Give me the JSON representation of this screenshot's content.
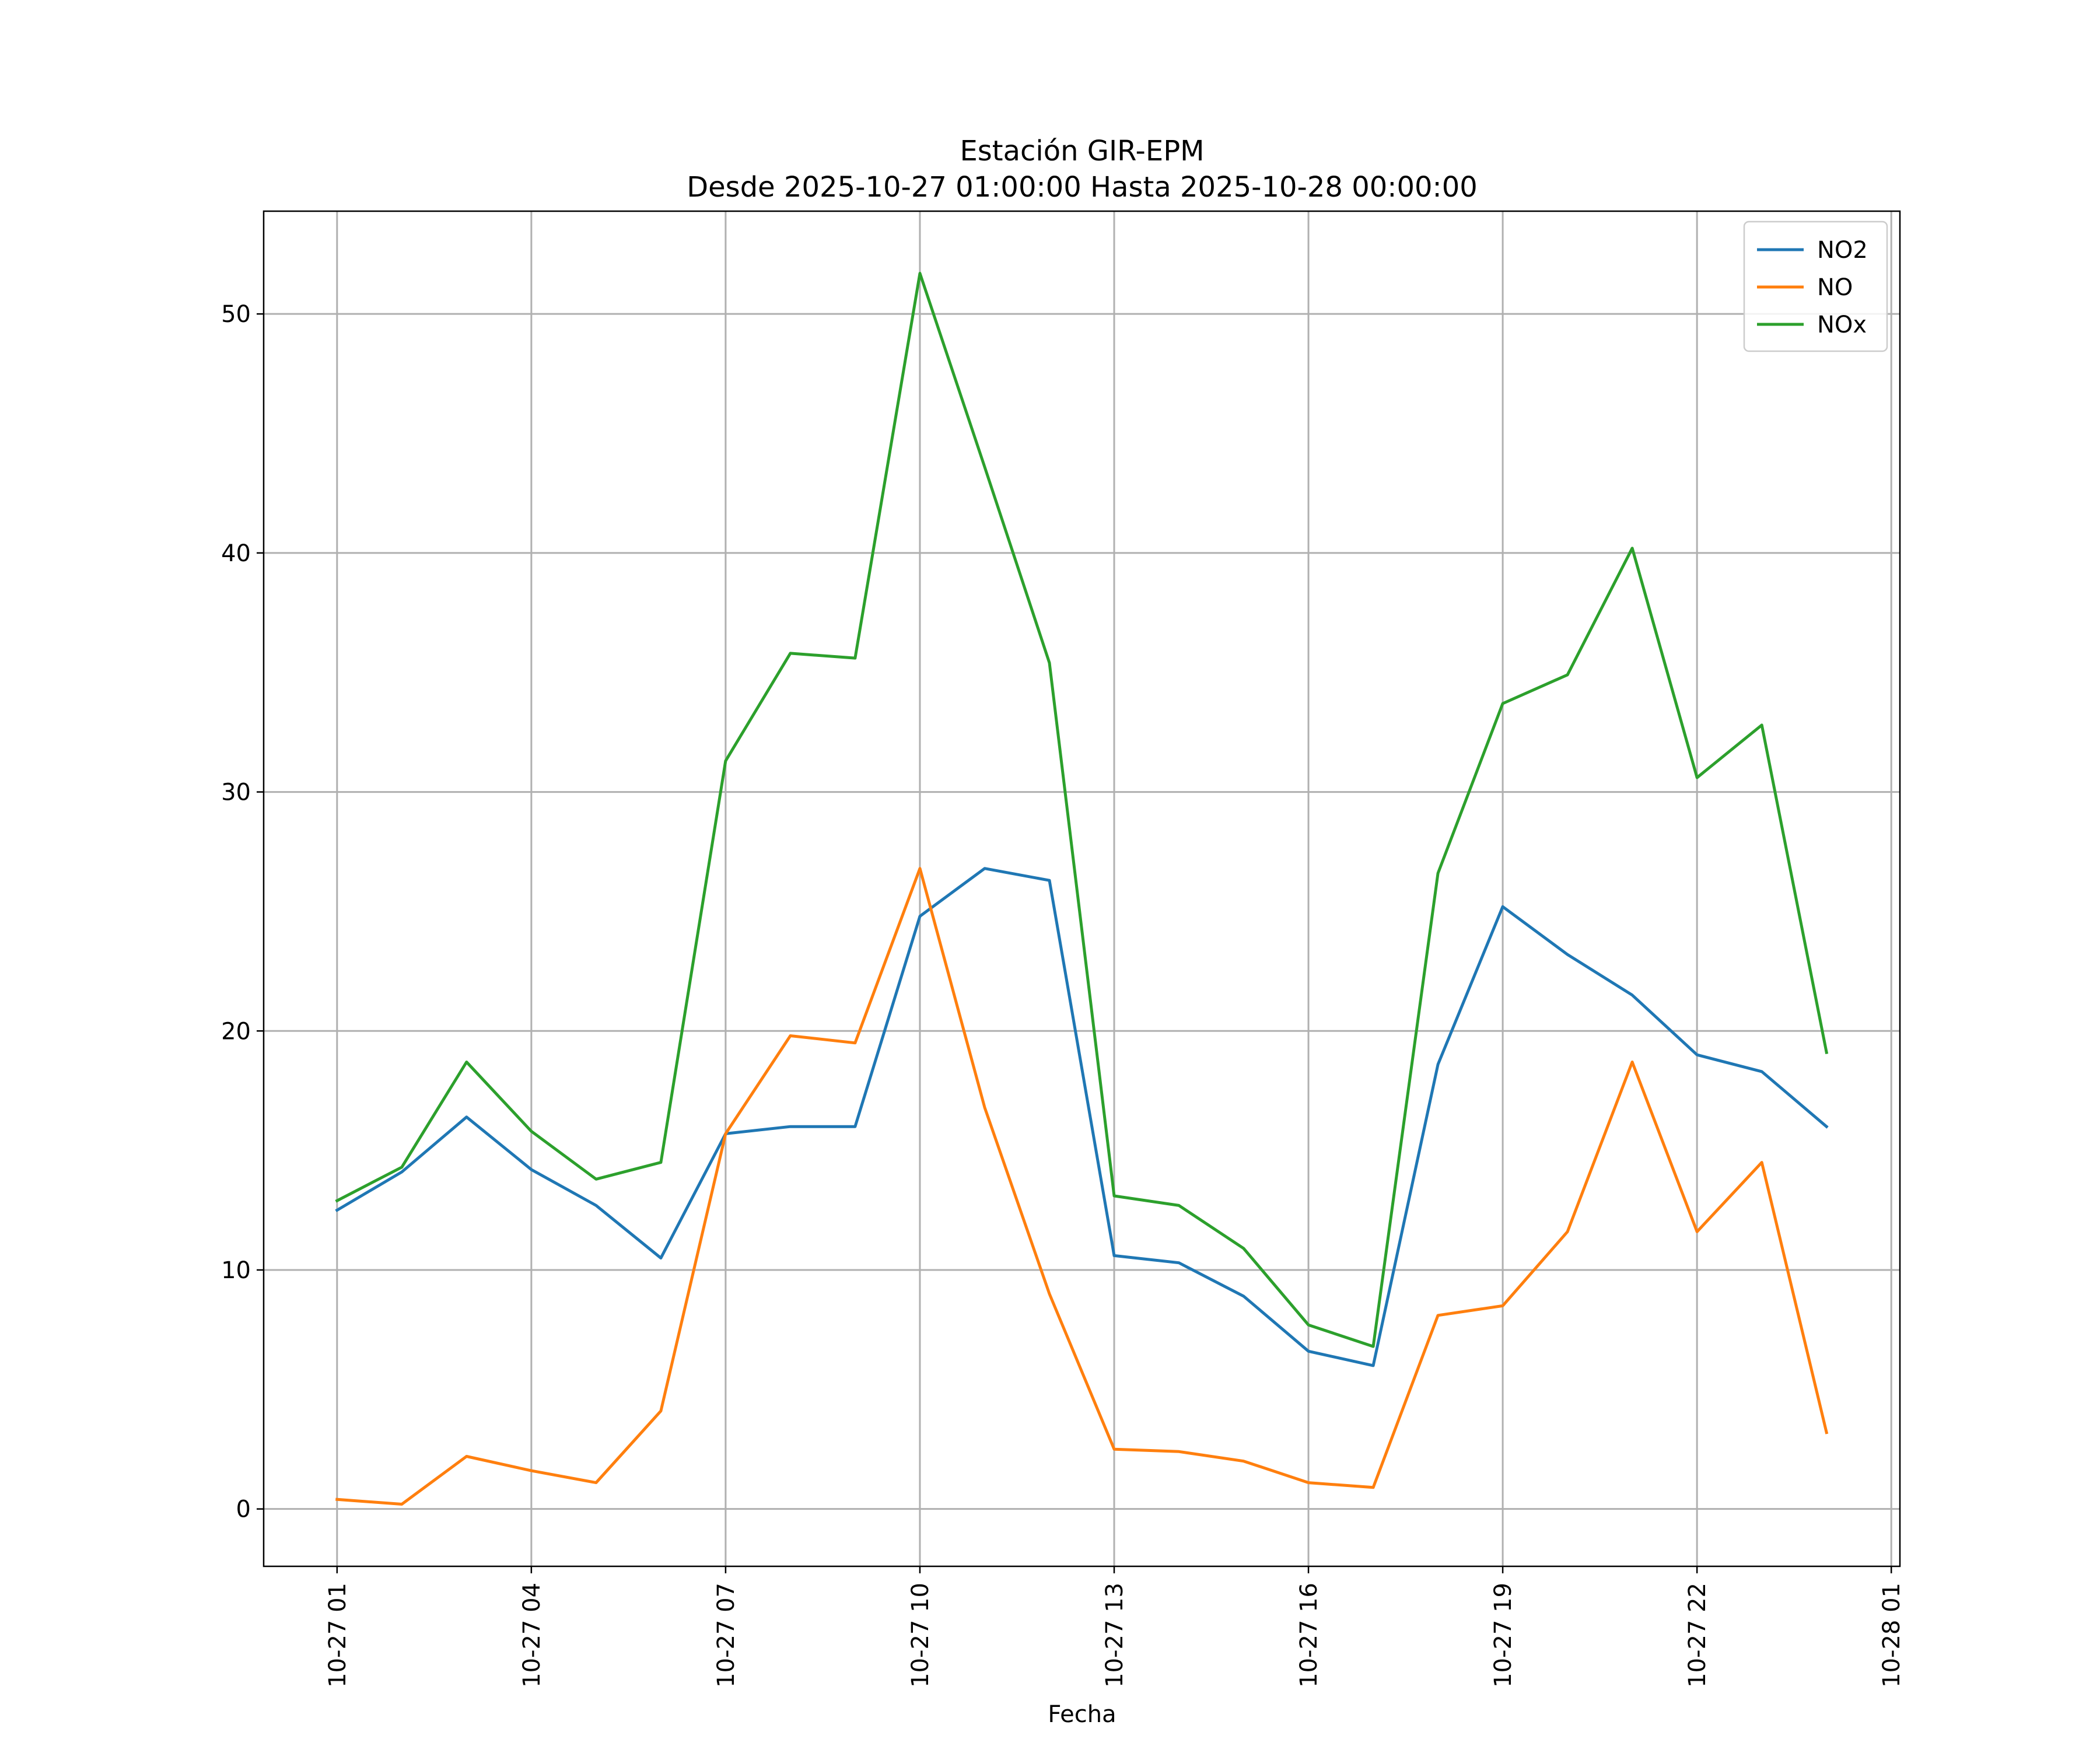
{
  "chart_data": {
    "type": "line",
    "title": "Estación GIR-EPM",
    "subtitle": "Desde 2025-10-27 01:00:00 Hasta 2025-10-28 00:00:00",
    "xlabel": "Fecha",
    "ylabel": "",
    "x": [
      "2025-10-27 01:00",
      "2025-10-27 02:00",
      "2025-10-27 03:00",
      "2025-10-27 04:00",
      "2025-10-27 05:00",
      "2025-10-27 06:00",
      "2025-10-27 07:00",
      "2025-10-27 08:00",
      "2025-10-27 09:00",
      "2025-10-27 10:00",
      "2025-10-27 11:00",
      "2025-10-27 12:00",
      "2025-10-27 13:00",
      "2025-10-27 14:00",
      "2025-10-27 15:00",
      "2025-10-27 16:00",
      "2025-10-27 17:00",
      "2025-10-27 18:00",
      "2025-10-27 19:00",
      "2025-10-27 20:00",
      "2025-10-27 21:00",
      "2025-10-27 22:00",
      "2025-10-27 23:00",
      "2025-10-28 00:00"
    ],
    "xlim": [
      "2025-10-26 23:52",
      "2025-10-28 01:08"
    ],
    "xticks": [
      "10-27 01",
      "10-27 04",
      "10-27 07",
      "10-27 10",
      "10-27 13",
      "10-27 16",
      "10-27 19",
      "10-27 22",
      "10-28 01"
    ],
    "ylim": [
      -2.4,
      54.3
    ],
    "yticks": [
      0,
      10,
      20,
      30,
      40,
      50
    ],
    "grid": true,
    "legend_position": "top-right",
    "series": [
      {
        "name": "NO2",
        "color": "#1f77b4",
        "values": [
          12.5,
          14.1,
          16.4,
          14.2,
          12.7,
          10.5,
          15.7,
          16.0,
          16.0,
          24.8,
          26.8,
          26.3,
          10.6,
          10.3,
          8.9,
          6.6,
          6.0,
          18.6,
          25.2,
          23.2,
          21.5,
          19.0,
          18.3,
          16.0
        ]
      },
      {
        "name": "NO",
        "color": "#ff7f0e",
        "values": [
          0.4,
          0.2,
          2.2,
          1.6,
          1.1,
          4.1,
          15.7,
          19.8,
          19.5,
          26.8,
          16.8,
          9.0,
          2.5,
          2.4,
          2.0,
          1.1,
          0.9,
          8.1,
          8.5,
          11.6,
          18.7,
          11.6,
          14.5,
          3.2
        ]
      },
      {
        "name": "NOx",
        "color": "#2ca02c",
        "values": [
          12.9,
          14.3,
          18.7,
          15.8,
          13.8,
          14.5,
          31.3,
          35.8,
          35.6,
          51.7,
          43.6,
          35.4,
          13.1,
          12.7,
          10.9,
          7.7,
          6.8,
          26.6,
          33.7,
          34.9,
          40.2,
          30.6,
          32.8,
          19.1
        ]
      }
    ]
  }
}
